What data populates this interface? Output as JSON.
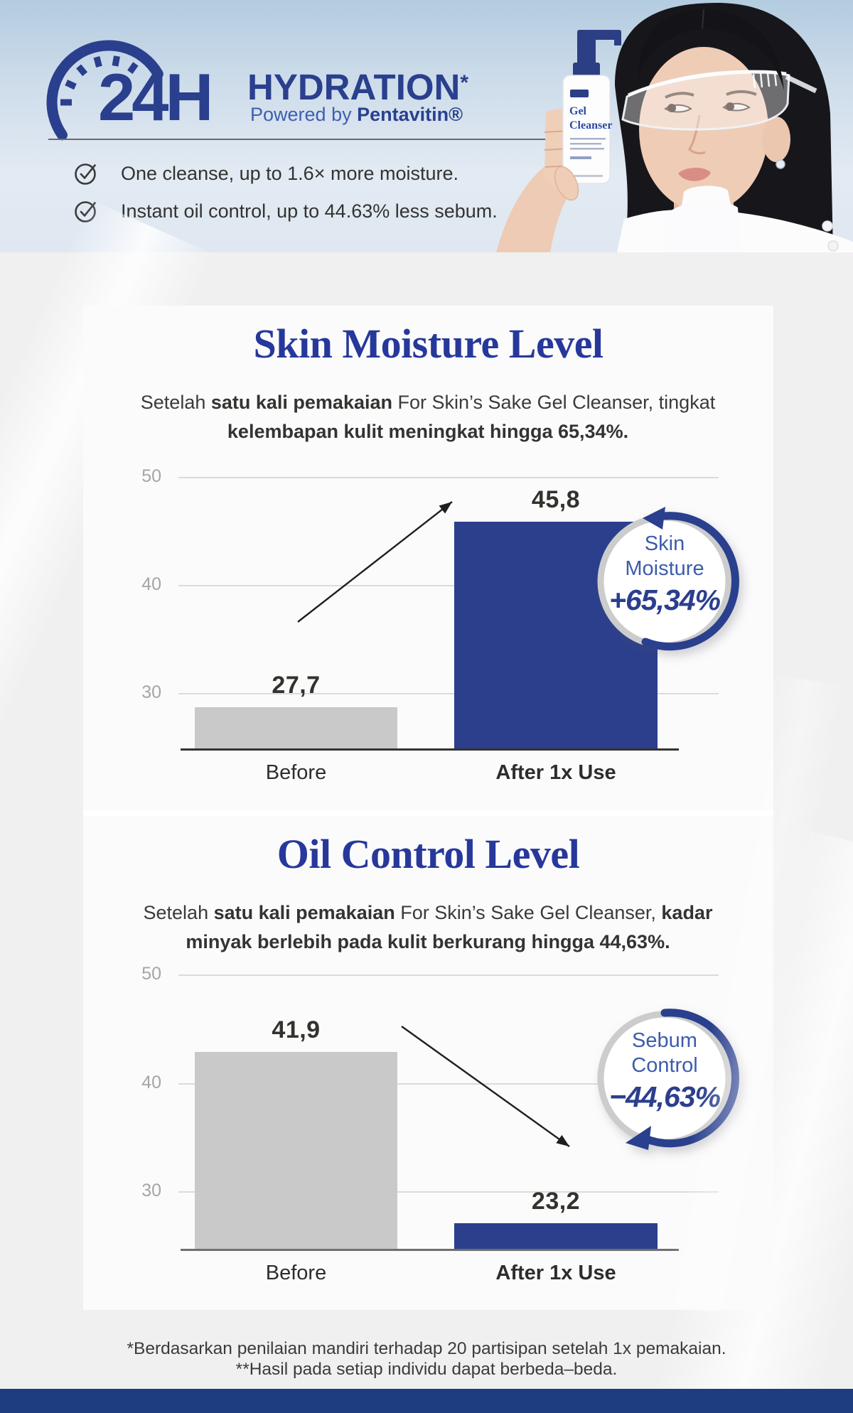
{
  "colors": {
    "navy": "#2a3f8d",
    "bar_blue": "#2b3f8d",
    "bar_gray": "#c9c9c9",
    "gridline": "#dbdbdb",
    "tick_label": "#a5a5a5",
    "title_blue": "#27389b",
    "badge_label_blue": "#3d5cab",
    "body_text": "#333331",
    "bottom_bar": "#1e3c80"
  },
  "header": {
    "logo": {
      "hours": "24H",
      "title": "HYDRATION",
      "asterisk": "*",
      "powered_prefix": "Powered by ",
      "powered_brand": "Pentavitin®"
    },
    "bullets": [
      "One cleanse, up to 1.6× more moisture.",
      "Instant oil control, up to 44.63% less sebum."
    ],
    "product": {
      "label_line1": "Gel",
      "label_line2": "Cleanser"
    }
  },
  "chart_data": [
    {
      "type": "bar",
      "title": "Skin Moisture Level",
      "subtitle_lines": [
        [
          {
            "t": "Setelah ",
            "b": false
          },
          {
            "t": "satu kali pemakaian",
            "b": true
          },
          {
            "t": " For Skin’s Sake Gel Cleanser, tingkat",
            "b": false
          }
        ],
        [
          {
            "t": "kelembapan kulit meningkat hingga 65,34%.",
            "b": true
          }
        ]
      ],
      "categories": [
        "Before",
        "After 1x Use"
      ],
      "categories_bold": [
        false,
        true
      ],
      "values": [
        27.7,
        45.8
      ],
      "value_labels": [
        "27,7",
        "45,8"
      ],
      "series_colors": [
        "#c9c9c9",
        "#2b3f8d"
      ],
      "yticks": [
        "50",
        "40",
        "30"
      ],
      "ylim": [
        25,
        52
      ],
      "grid": true,
      "legend": "none",
      "badge": {
        "lines": [
          "Skin",
          "Moisture"
        ],
        "value": "+65,34%",
        "direction": "up"
      }
    },
    {
      "type": "bar",
      "title": "Oil Control Level",
      "subtitle_lines": [
        [
          {
            "t": "Setelah ",
            "b": false
          },
          {
            "t": "satu kali pemakaian",
            "b": true
          },
          {
            "t": " For Skin’s Sake Gel Cleanser, ",
            "b": false
          },
          {
            "t": "kadar",
            "b": true
          }
        ],
        [
          {
            "t": "minyak berlebih pada kulit  berkurang hingga 44,63%.",
            "b": true
          }
        ]
      ],
      "categories": [
        "Before",
        "After 1x Use"
      ],
      "categories_bold": [
        false,
        true
      ],
      "values": [
        41.9,
        23.2
      ],
      "value_labels": [
        "41,9",
        "23,2"
      ],
      "series_colors": [
        "#c9c9c9",
        "#2b3f8d"
      ],
      "yticks": [
        "50",
        "40",
        "30"
      ],
      "ylim": [
        25,
        52
      ],
      "grid": true,
      "legend": "none",
      "badge": {
        "lines": [
          "Sebum",
          "Control"
        ],
        "value": "−44,63%",
        "direction": "down"
      }
    }
  ],
  "footer": {
    "line1": "*Berdasarkan penilaian mandiri terhadap 20 partisipan setelah 1x pemakaian.",
    "line2": "**Hasil pada setiap individu dapat berbeda–beda."
  }
}
